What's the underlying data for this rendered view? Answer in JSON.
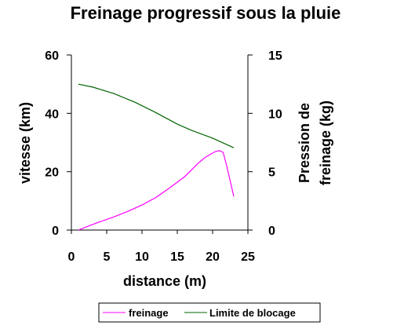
{
  "chart_data": {
    "type": "line",
    "title": "Freinage progressif sous la pluie",
    "xlabel": "distance (m)",
    "ylabel_left": "vitesse (km)",
    "ylabel_right_line1": "Pression de",
    "ylabel_right_line2": "freinage (kg)",
    "xlim": [
      0,
      25
    ],
    "ylim_left": [
      0,
      60
    ],
    "ylim_right": [
      0,
      15
    ],
    "x_ticks": [
      0,
      5,
      10,
      15,
      20,
      25
    ],
    "y_left_ticks": [
      0,
      20,
      40,
      60
    ],
    "y_right_ticks": [
      0,
      5,
      10,
      15
    ],
    "grid": false,
    "legend_position": "bottom",
    "series": [
      {
        "name": "freinage",
        "axis": "left",
        "color": "#ff00ff",
        "x": [
          1,
          2,
          4,
          6,
          8,
          10,
          12,
          14,
          16,
          18,
          19,
          20,
          20.5,
          21,
          21.5,
          22,
          23
        ],
        "y": [
          0,
          1,
          2.8,
          4.5,
          6.4,
          8.6,
          11.2,
          14.6,
          18.2,
          23,
          25,
          26.4,
          27,
          27.2,
          26.6,
          22,
          11.5
        ]
      },
      {
        "name": "Limite de blocage",
        "axis": "left",
        "color": "#006400",
        "x": [
          1,
          3,
          6,
          9,
          12,
          15,
          17,
          20,
          23
        ],
        "y": [
          50,
          49,
          46.8,
          43.8,
          40.2,
          36.3,
          34.2,
          31.5,
          28.2
        ]
      }
    ]
  }
}
